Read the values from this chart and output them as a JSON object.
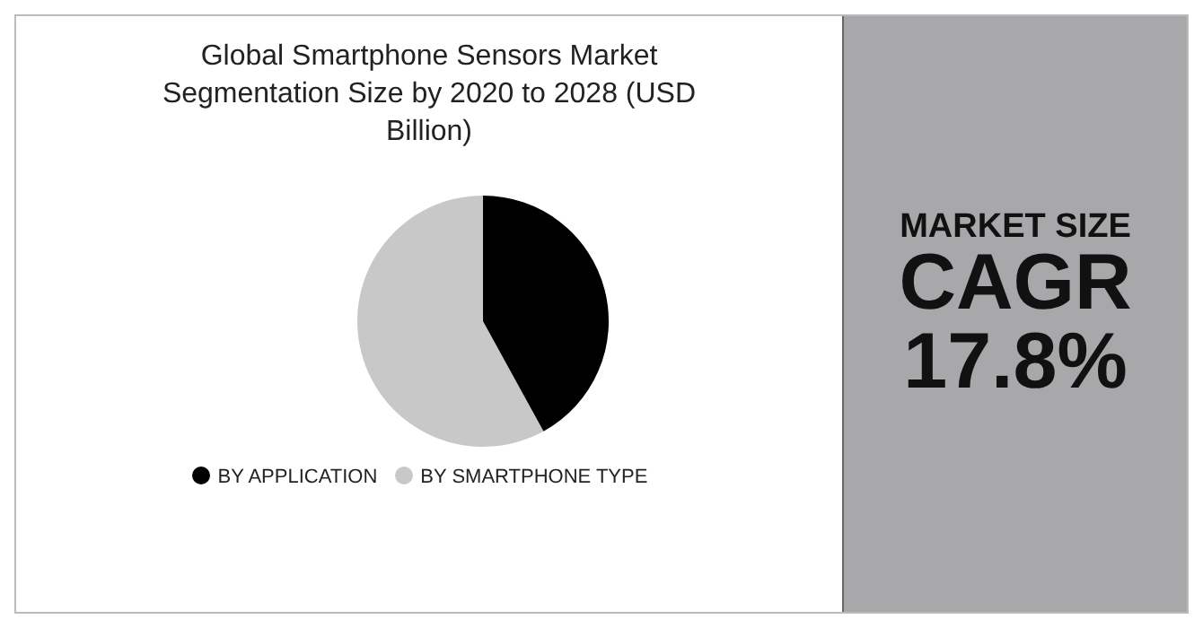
{
  "chart_data": {
    "type": "pie",
    "title": "Global Smartphone Sensors Market Segmentation Size by 2020 to 2028 (USD Billion)",
    "categories": [
      "BY SMARTPHONE TYPE",
      "BY APPLICATION"
    ],
    "values": [
      58,
      42
    ],
    "colors": [
      "#c8c8c8",
      "#000000"
    ],
    "legend": "bottom",
    "annotations": [
      "MARKET SIZE",
      "CAGR",
      "17.8%"
    ]
  }
}
